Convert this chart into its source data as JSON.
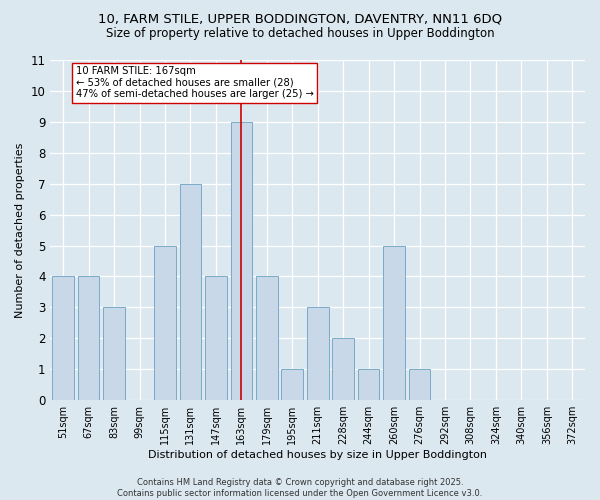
{
  "title_line1": "10, FARM STILE, UPPER BODDINGTON, DAVENTRY, NN11 6DQ",
  "title_line2": "Size of property relative to detached houses in Upper Boddington",
  "xlabel": "Distribution of detached houses by size in Upper Boddington",
  "ylabel": "Number of detached properties",
  "categories": [
    "51sqm",
    "67sqm",
    "83sqm",
    "99sqm",
    "115sqm",
    "131sqm",
    "147sqm",
    "163sqm",
    "179sqm",
    "195sqm",
    "211sqm",
    "228sqm",
    "244sqm",
    "260sqm",
    "276sqm",
    "292sqm",
    "308sqm",
    "324sqm",
    "340sqm",
    "356sqm",
    "372sqm"
  ],
  "values": [
    4,
    4,
    3,
    0,
    5,
    7,
    4,
    9,
    4,
    1,
    3,
    2,
    1,
    5,
    1,
    0,
    0,
    0,
    0,
    0,
    0
  ],
  "bar_color": "#c8d8e8",
  "bar_edge_color": "#7aaac8",
  "highlight_index": 7,
  "highlight_line_color": "#cc0000",
  "annotation_text": "10 FARM STILE: 167sqm\n← 53% of detached houses are smaller (28)\n47% of semi-detached houses are larger (25) →",
  "annotation_box_color": "#ffffff",
  "annotation_box_edge_color": "#cc0000",
  "ylim": [
    0,
    11
  ],
  "yticks": [
    0,
    1,
    2,
    3,
    4,
    5,
    6,
    7,
    8,
    9,
    10,
    11
  ],
  "footer_text": "Contains HM Land Registry data © Crown copyright and database right 2025.\nContains public sector information licensed under the Open Government Licence v3.0.",
  "background_color": "#dce8f0",
  "plot_background_color": "#dce8f0"
}
